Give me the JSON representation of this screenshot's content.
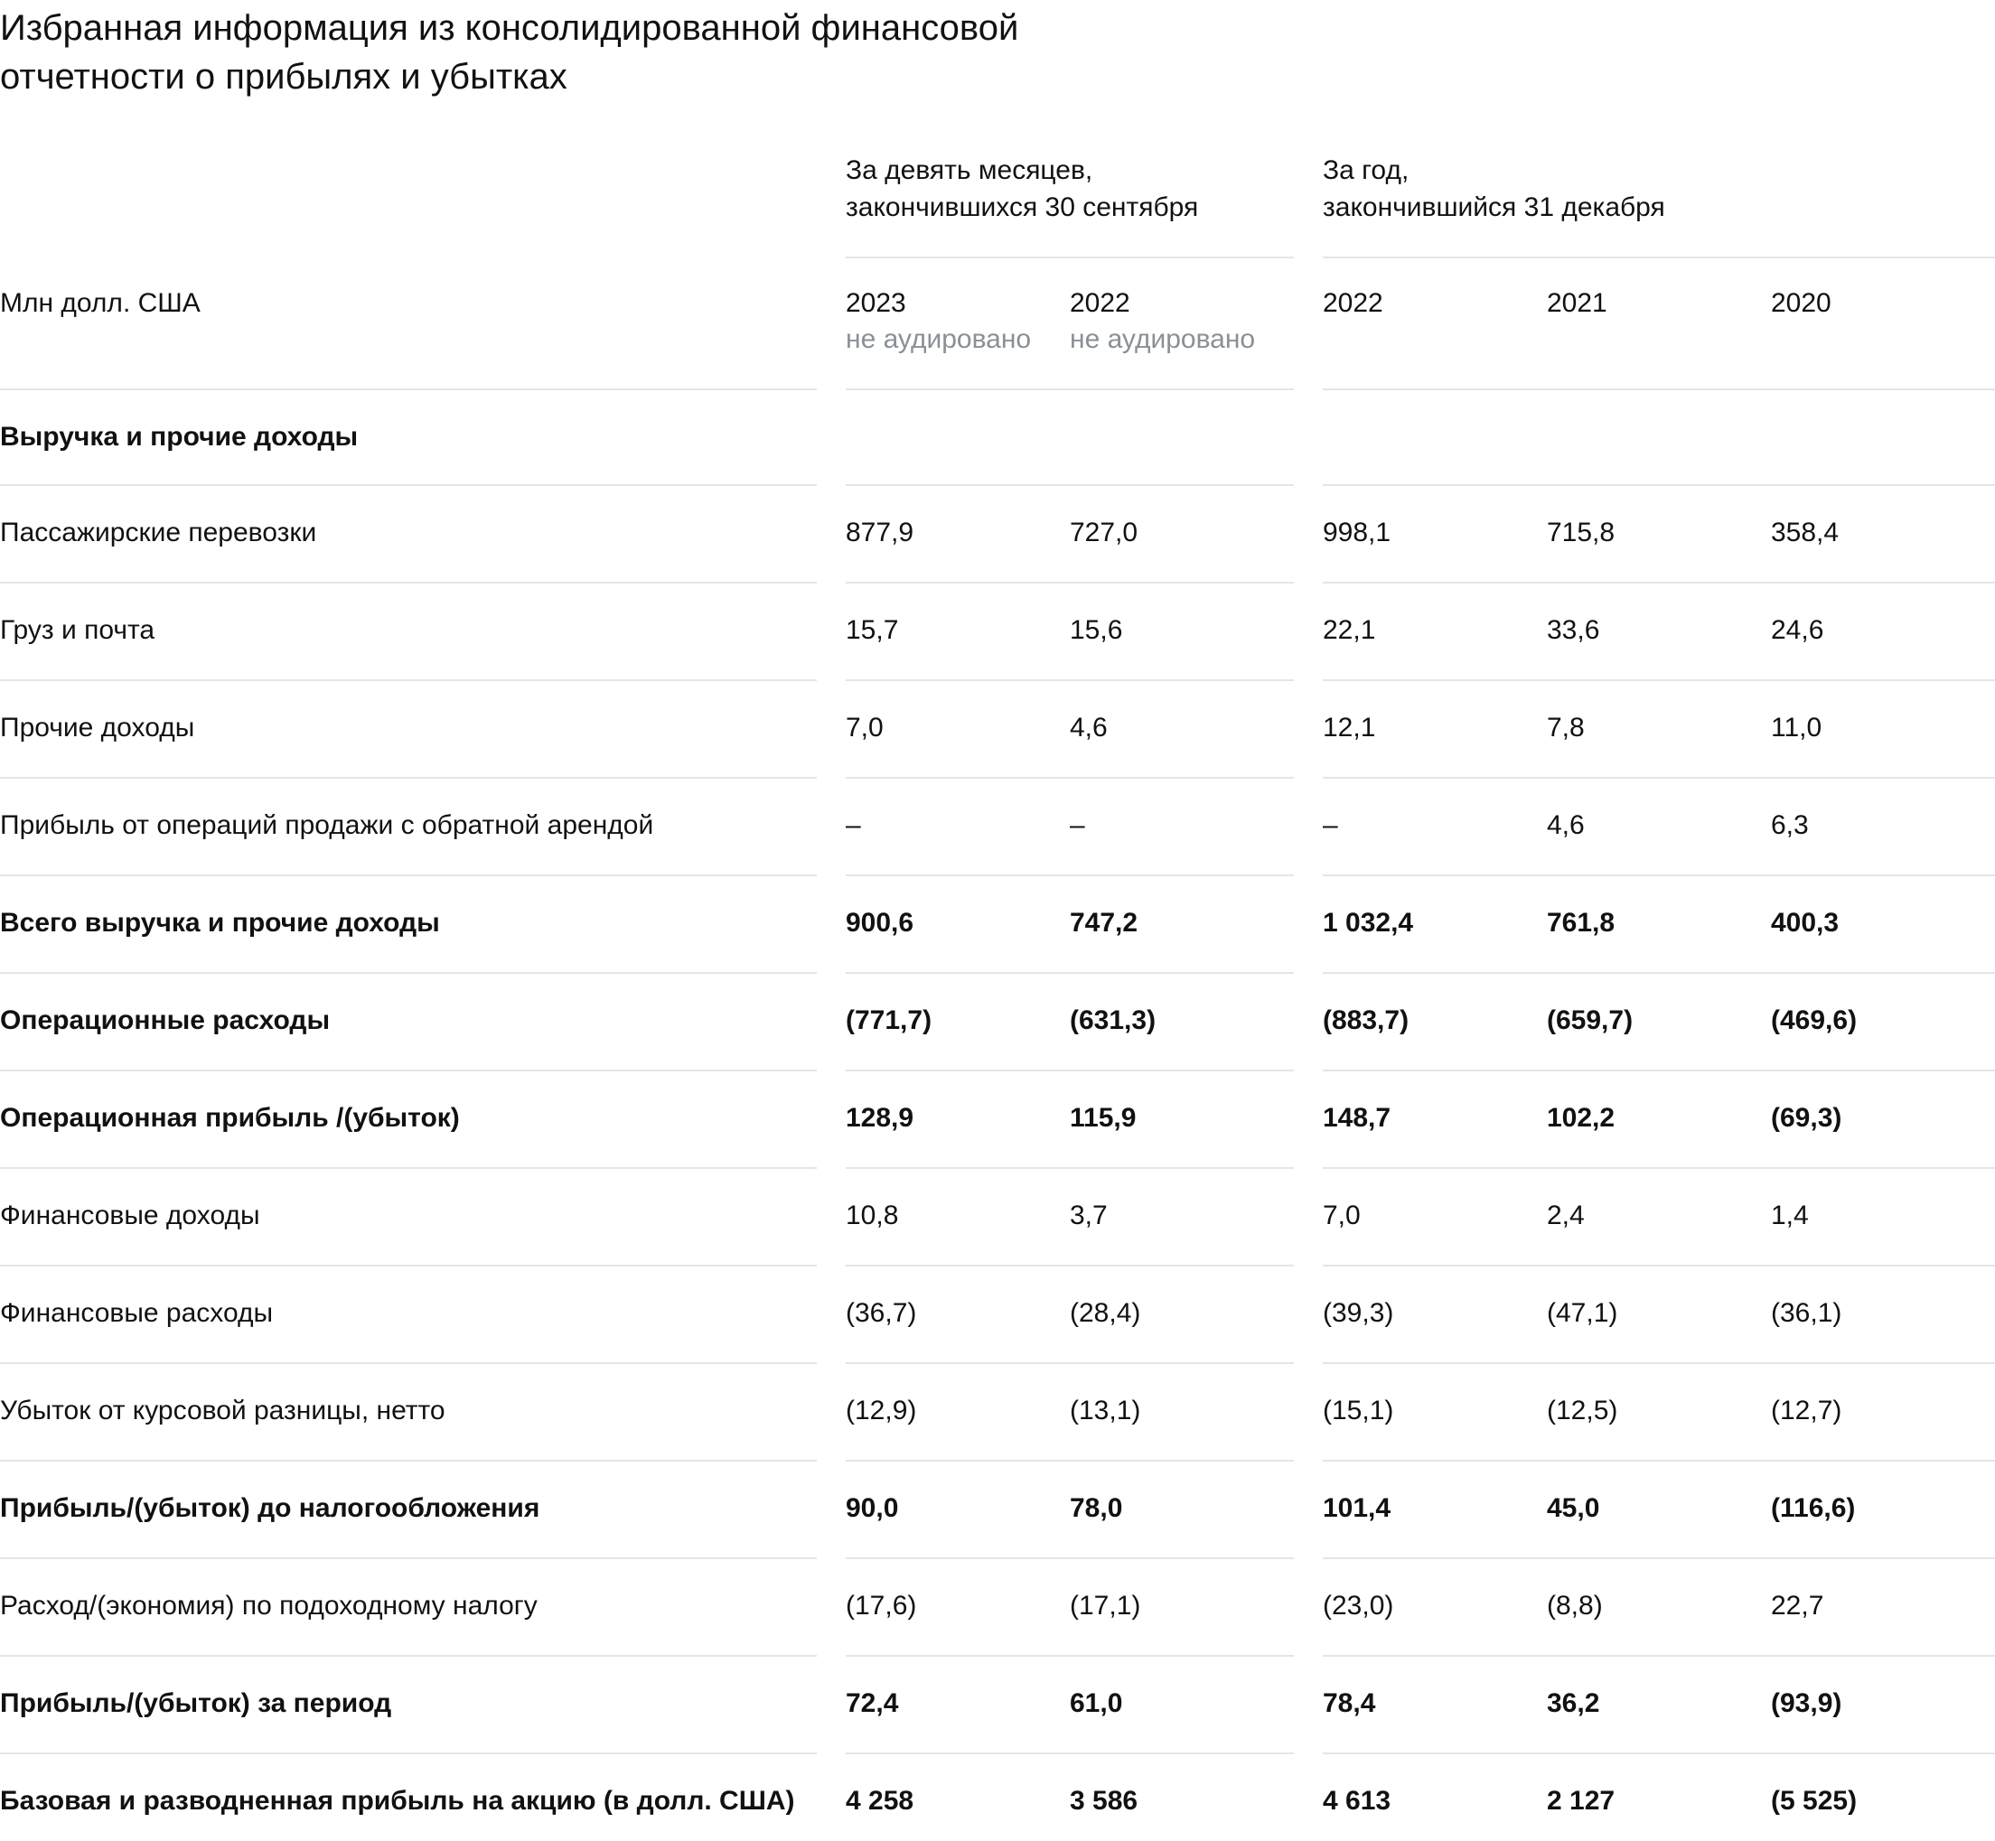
{
  "title_line1": "Избранная информация из консолидированной финансовой",
  "title_line2": "отчетности о прибылях и убытках",
  "periods": {
    "nine_months": {
      "line1": "За девять месяцев,",
      "line2": "закончившихся 30 сентября"
    },
    "year": {
      "line1": "За год,",
      "line2": "закончившийся 31 декабря"
    }
  },
  "unit_label": "Млн долл. США",
  "years": [
    {
      "year": "2023",
      "note": "не аудировано"
    },
    {
      "year": "2022",
      "note": "не аудировано"
    },
    {
      "year": "2022",
      "note": ""
    },
    {
      "year": "2021",
      "note": ""
    },
    {
      "year": "2020",
      "note": ""
    }
  ],
  "section_label": "Выручка и прочие доходы",
  "rows": [
    {
      "label": "Пассажирские перевозки",
      "bold": false,
      "values": [
        "877,9",
        "727,0",
        "998,1",
        "715,8",
        "358,4"
      ]
    },
    {
      "label": "Груз и почта",
      "bold": false,
      "values": [
        "15,7",
        "15,6",
        "22,1",
        "33,6",
        "24,6"
      ]
    },
    {
      "label": "Прочие доходы",
      "bold": false,
      "values": [
        "7,0",
        "4,6",
        "12,1",
        "7,8",
        "11,0"
      ]
    },
    {
      "label": "Прибыль от операций продажи с обратной арендой",
      "bold": false,
      "values": [
        "–",
        "–",
        "–",
        "4,6",
        "6,3"
      ]
    },
    {
      "label": "Всего выручка и прочие доходы",
      "bold": true,
      "values": [
        "900,6",
        "747,2",
        "1 032,4",
        "761,8",
        "400,3"
      ]
    },
    {
      "label": "Операционные расходы",
      "bold": true,
      "values": [
        "(771,7)",
        "(631,3)",
        "(883,7)",
        "(659,7)",
        "(469,6)"
      ]
    },
    {
      "label": "Операционная прибыль /(убыток)",
      "bold": true,
      "values": [
        "128,9",
        "115,9",
        "148,7",
        "102,2",
        "(69,3)"
      ]
    },
    {
      "label": "Финансовые доходы",
      "bold": false,
      "values": [
        "10,8",
        "3,7",
        "7,0",
        "2,4",
        "1,4"
      ]
    },
    {
      "label": "Финансовые расходы",
      "bold": false,
      "values": [
        "(36,7)",
        "(28,4)",
        "(39,3)",
        "(47,1)",
        "(36,1)"
      ]
    },
    {
      "label": "Убыток от курсовой разницы, нетто",
      "bold": false,
      "values": [
        "(12,9)",
        "(13,1)",
        "(15,1)",
        "(12,5)",
        "(12,7)"
      ]
    },
    {
      "label": "Прибыль/(убыток) до налогообложения",
      "bold": true,
      "values": [
        "90,0",
        "78,0",
        "101,4",
        "45,0",
        "(116,6)"
      ]
    },
    {
      "label": "Расход/(экономия) по подоходному налогу",
      "bold": false,
      "values": [
        "(17,6)",
        "(17,1)",
        "(23,0)",
        "(8,8)",
        "22,7"
      ]
    },
    {
      "label": "Прибыль/(убыток) за период",
      "bold": true,
      "values": [
        "72,4",
        "61,0",
        "78,4",
        "36,2",
        "(93,9)"
      ]
    },
    {
      "label": "Базовая и разводненная прибыль на акцию (в долл. США)",
      "bold": true,
      "values": [
        "4 258",
        "3 586",
        "4 613",
        "2 127",
        "(5 525)"
      ]
    }
  ]
}
